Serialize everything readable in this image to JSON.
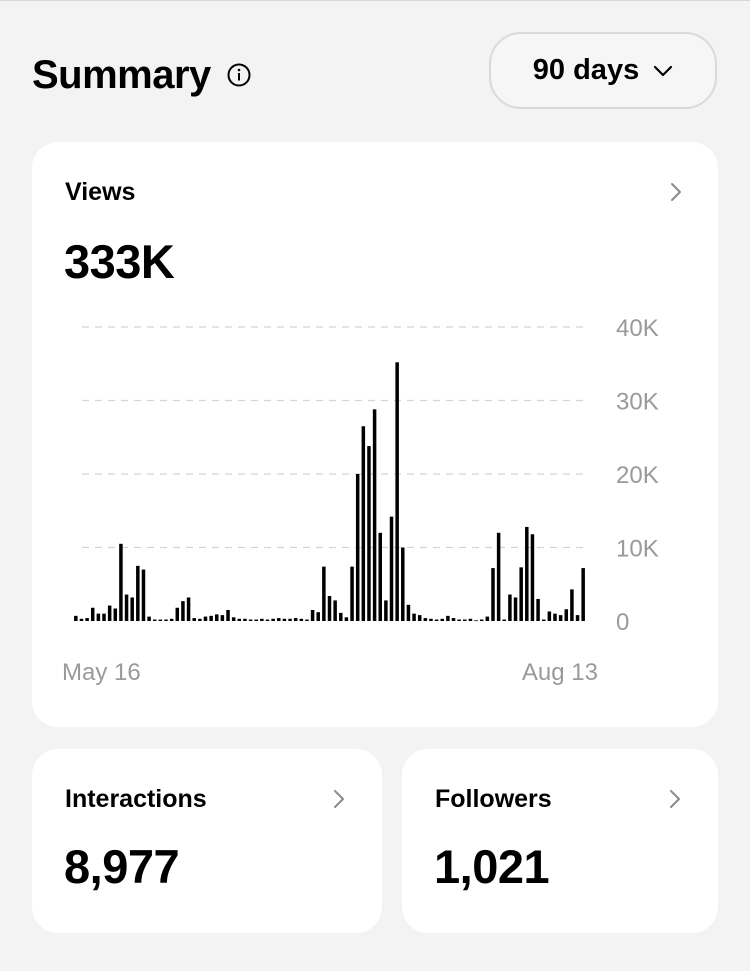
{
  "header": {
    "title": "Summary",
    "range_label": "90 days"
  },
  "views": {
    "label": "Views",
    "value": "333K"
  },
  "interactions": {
    "label": "Interactions",
    "value": "8,977"
  },
  "followers": {
    "label": "Followers",
    "value": "1,021"
  },
  "chart_data": {
    "type": "bar",
    "series": [
      {
        "values": [
          700,
          300,
          400,
          1800,
          1000,
          1000,
          2100,
          1700,
          10500,
          3600,
          3200,
          7500,
          7000,
          600,
          200,
          200,
          200,
          300,
          1800,
          2700,
          3200,
          400,
          300,
          600,
          700,
          900,
          800,
          1500,
          500,
          300,
          300,
          200,
          200,
          300,
          200,
          300,
          400,
          300,
          300,
          400,
          300,
          200,
          1500,
          1200,
          7400,
          3400,
          2800,
          1100,
          500,
          7400,
          20000,
          26500,
          23800,
          28800,
          12000,
          2800,
          14200,
          35200,
          10000,
          2200,
          1000,
          800,
          400,
          300,
          200,
          300,
          700,
          400,
          200,
          200,
          300,
          100,
          200,
          600,
          7200,
          12000,
          200,
          3600,
          3200,
          7300,
          12800,
          11800,
          3000,
          200,
          1300,
          1000,
          800,
          1600,
          4300,
          800,
          7200
        ]
      }
    ],
    "x_labels": [
      "May 16",
      "Aug 13"
    ],
    "y_ticks": [
      "0",
      "10K",
      "20K",
      "30K",
      "40K"
    ],
    "ylim": [
      0,
      40000
    ],
    "grid": true,
    "grid_style": "dashed",
    "colors": {
      "bar": "#000000",
      "grid": "#d4d4d4",
      "axis_text": "#9a9a9a"
    }
  }
}
